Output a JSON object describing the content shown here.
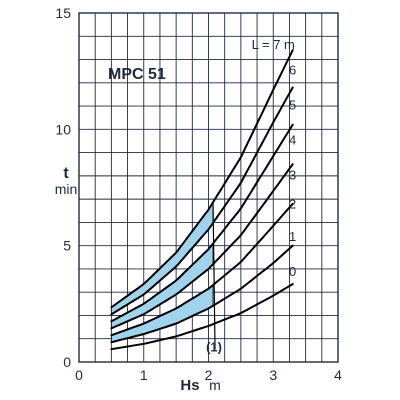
{
  "chart_data": {
    "type": "line",
    "title": "MPC 51",
    "xlabel": "Hs",
    "xunit": "m",
    "ylabel": "t",
    "yunit": "min",
    "xlim": [
      0,
      4
    ],
    "ylim": [
      0,
      15
    ],
    "xticks": [
      "0",
      "1",
      "2",
      "3",
      "4"
    ],
    "yticks": [
      "0",
      "5",
      "10",
      "15"
    ],
    "grid": true,
    "annotation": "(1)",
    "boundary_x": 2.07,
    "series_title": "L = 7 m",
    "series": [
      {
        "name": "0",
        "x": [
          0.5,
          1.0,
          1.5,
          2.0,
          2.5,
          3.0,
          3.3
        ],
        "y": [
          0.55,
          0.78,
          1.1,
          1.55,
          2.1,
          2.85,
          3.35
        ]
      },
      {
        "name": "1",
        "x": [
          0.5,
          1.0,
          1.5,
          2.0,
          2.5,
          3.0,
          3.3
        ],
        "y": [
          0.85,
          1.2,
          1.65,
          2.3,
          3.15,
          4.25,
          5.0
        ]
      },
      {
        "name": "2",
        "x": [
          0.5,
          1.0,
          1.5,
          2.0,
          2.5,
          3.0,
          3.3
        ],
        "y": [
          1.15,
          1.65,
          2.3,
          3.15,
          4.3,
          5.85,
          6.8
        ]
      },
      {
        "name": "3",
        "x": [
          0.5,
          1.0,
          1.5,
          2.0,
          2.5,
          3.0,
          3.3
        ],
        "y": [
          1.45,
          2.05,
          2.9,
          4.0,
          5.45,
          7.35,
          8.5
        ]
      },
      {
        "name": "4",
        "x": [
          0.5,
          1.0,
          1.5,
          2.0,
          2.5,
          3.0,
          3.3
        ],
        "y": [
          1.75,
          2.5,
          3.5,
          4.85,
          6.6,
          8.85,
          10.2
        ]
      },
      {
        "name": "5",
        "x": [
          0.5,
          1.0,
          1.5,
          2.0,
          2.5,
          3.0,
          3.3
        ],
        "y": [
          2.05,
          2.9,
          4.1,
          5.7,
          7.7,
          10.3,
          11.8
        ]
      },
      {
        "name": "",
        "x": [
          0.5,
          1.0,
          1.5,
          2.0,
          2.5,
          3.0,
          3.3
        ],
        "y": [
          2.35,
          3.35,
          4.7,
          6.55,
          8.8,
          11.7,
          13.4
        ]
      }
    ],
    "curve_labels": [
      {
        "text": "L = 7 m",
        "x": 3.0,
        "y": 13.45
      },
      {
        "text": "6",
        "x": 3.3,
        "y": 12.35
      },
      {
        "text": "5",
        "x": 3.3,
        "y": 10.85
      },
      {
        "text": "4",
        "x": 3.3,
        "y": 9.35
      },
      {
        "text": "3",
        "x": 3.3,
        "y": 7.85
      },
      {
        "text": "2",
        "x": 3.3,
        "y": 6.6
      },
      {
        "text": "1",
        "x": 3.3,
        "y": 5.2
      },
      {
        "text": "0",
        "x": 3.3,
        "y": 3.7
      }
    ],
    "shaded_pairs": [
      [
        6,
        5
      ],
      [
        4,
        3
      ],
      [
        2,
        1
      ]
    ],
    "colors": {
      "curve": "#000000",
      "shade": "#9fd4ec",
      "grid": "#1e2a44",
      "text": "#1e2a44"
    }
  }
}
